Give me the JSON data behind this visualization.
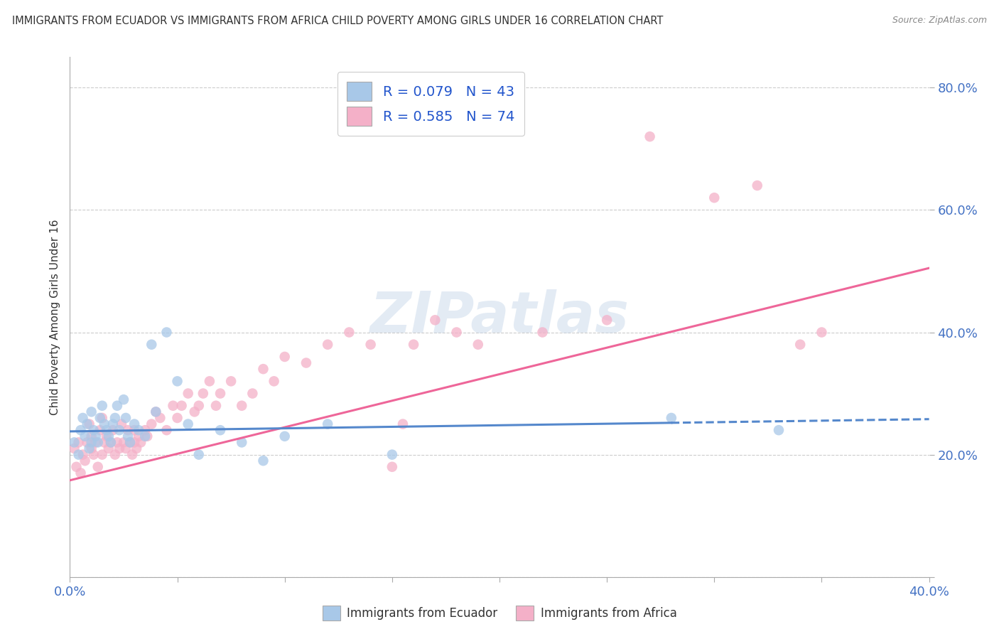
{
  "title": "IMMIGRANTS FROM ECUADOR VS IMMIGRANTS FROM AFRICA CHILD POVERTY AMONG GIRLS UNDER 16 CORRELATION CHART",
  "source": "Source: ZipAtlas.com",
  "ylabel": "Child Poverty Among Girls Under 16",
  "xlim": [
    0.0,
    0.4
  ],
  "ylim": [
    0.0,
    0.85
  ],
  "x_ticks": [
    0.0,
    0.05,
    0.1,
    0.15,
    0.2,
    0.25,
    0.3,
    0.35,
    0.4
  ],
  "y_ticks": [
    0.0,
    0.2,
    0.4,
    0.6,
    0.8
  ],
  "legend_ecuador": "R = 0.079   N = 43",
  "legend_africa": "R = 0.585   N = 74",
  "color_ecuador": "#a8c8e8",
  "color_africa": "#f4b0c8",
  "line_color_ecuador": "#5588cc",
  "line_color_africa": "#ee6699",
  "watermark": "ZIPatlas",
  "ecuador_scatter_x": [
    0.002,
    0.004,
    0.005,
    0.006,
    0.007,
    0.008,
    0.009,
    0.01,
    0.01,
    0.011,
    0.012,
    0.013,
    0.014,
    0.015,
    0.016,
    0.017,
    0.018,
    0.019,
    0.02,
    0.021,
    0.022,
    0.023,
    0.025,
    0.026,
    0.027,
    0.028,
    0.03,
    0.032,
    0.035,
    0.038,
    0.04,
    0.045,
    0.05,
    0.055,
    0.06,
    0.07,
    0.08,
    0.09,
    0.1,
    0.12,
    0.15,
    0.28,
    0.33
  ],
  "ecuador_scatter_y": [
    0.22,
    0.2,
    0.24,
    0.26,
    0.23,
    0.25,
    0.21,
    0.27,
    0.22,
    0.24,
    0.23,
    0.22,
    0.26,
    0.28,
    0.25,
    0.24,
    0.23,
    0.22,
    0.25,
    0.26,
    0.28,
    0.24,
    0.29,
    0.26,
    0.23,
    0.22,
    0.25,
    0.24,
    0.23,
    0.38,
    0.27,
    0.4,
    0.32,
    0.25,
    0.2,
    0.24,
    0.22,
    0.19,
    0.23,
    0.25,
    0.2,
    0.26,
    0.24
  ],
  "africa_scatter_x": [
    0.002,
    0.003,
    0.004,
    0.005,
    0.006,
    0.007,
    0.008,
    0.009,
    0.01,
    0.01,
    0.011,
    0.012,
    0.013,
    0.014,
    0.015,
    0.015,
    0.016,
    0.017,
    0.018,
    0.019,
    0.02,
    0.021,
    0.022,
    0.023,
    0.024,
    0.025,
    0.026,
    0.027,
    0.028,
    0.029,
    0.03,
    0.03,
    0.031,
    0.032,
    0.033,
    0.035,
    0.036,
    0.038,
    0.04,
    0.042,
    0.045,
    0.048,
    0.05,
    0.052,
    0.055,
    0.058,
    0.06,
    0.062,
    0.065,
    0.068,
    0.07,
    0.075,
    0.08,
    0.085,
    0.09,
    0.095,
    0.1,
    0.11,
    0.12,
    0.13,
    0.14,
    0.15,
    0.155,
    0.16,
    0.17,
    0.18,
    0.19,
    0.22,
    0.25,
    0.27,
    0.3,
    0.32,
    0.34,
    0.35
  ],
  "africa_scatter_y": [
    0.21,
    0.18,
    0.22,
    0.17,
    0.2,
    0.19,
    0.22,
    0.25,
    0.21,
    0.23,
    0.2,
    0.22,
    0.18,
    0.24,
    0.2,
    0.26,
    0.22,
    0.23,
    0.21,
    0.22,
    0.24,
    0.2,
    0.22,
    0.21,
    0.25,
    0.22,
    0.21,
    0.24,
    0.22,
    0.2,
    0.24,
    0.22,
    0.21,
    0.23,
    0.22,
    0.24,
    0.23,
    0.25,
    0.27,
    0.26,
    0.24,
    0.28,
    0.26,
    0.28,
    0.3,
    0.27,
    0.28,
    0.3,
    0.32,
    0.28,
    0.3,
    0.32,
    0.28,
    0.3,
    0.34,
    0.32,
    0.36,
    0.35,
    0.38,
    0.4,
    0.38,
    0.18,
    0.25,
    0.38,
    0.42,
    0.4,
    0.38,
    0.4,
    0.42,
    0.72,
    0.62,
    0.64,
    0.38,
    0.4
  ],
  "ecuador_line_x0": 0.0,
  "ecuador_line_y0": 0.238,
  "ecuador_line_x1": 0.4,
  "ecuador_line_y1": 0.258,
  "africa_line_x0": 0.0,
  "africa_line_y0": 0.158,
  "africa_line_x1": 0.4,
  "africa_line_y1": 0.505
}
